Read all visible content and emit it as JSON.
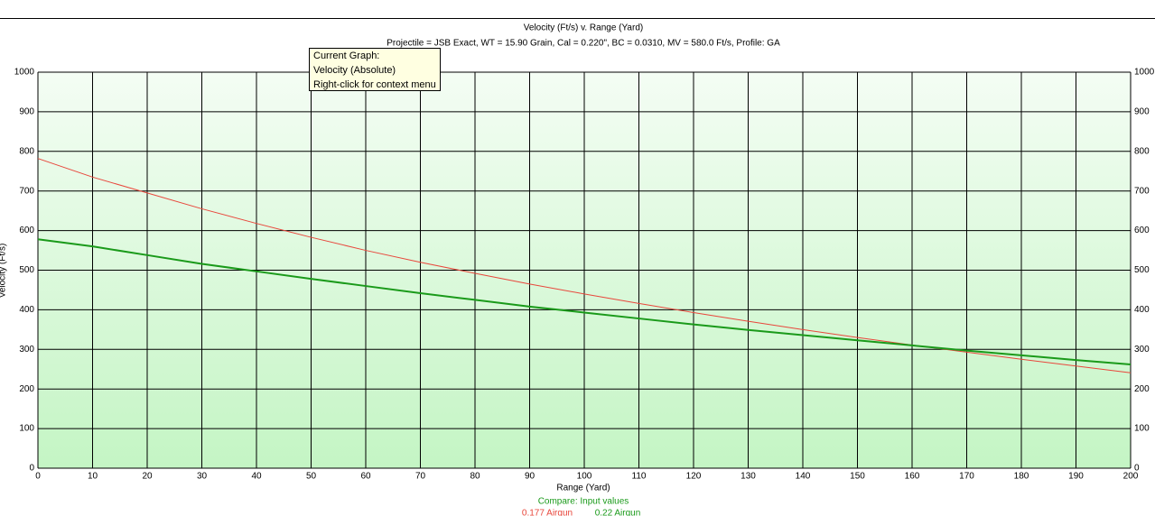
{
  "chart_data": {
    "type": "line",
    "title": "Velocity (Ft/s) v. Range (Yard)",
    "subtitle": "Projectile = JSB Exact, WT = 15.90 Grain, Cal = 0.220\", BC = 0.0310, MV = 580.0 Ft/s, Profile: GA",
    "x_label": "Range (Yard)",
    "y_label": "Velocity (Ft/s)",
    "legend_title": "Compare: Input values",
    "x": [
      0,
      10,
      20,
      30,
      40,
      50,
      60,
      70,
      80,
      90,
      100,
      110,
      120,
      130,
      140,
      150,
      160,
      170,
      180,
      190,
      200
    ],
    "series": [
      {
        "name": "0.177 Airgun",
        "color": "#e8473c",
        "width": 1,
        "values": [
          782,
          735,
          695,
          655,
          618,
          583,
          550,
          520,
          492,
          465,
          440,
          416,
          393,
          371,
          350,
          330,
          311,
          293,
          275,
          258,
          241
        ]
      },
      {
        "name": "0.22 Airgun",
        "color": "#1a9a1a",
        "width": 2,
        "values": [
          578,
          560,
          538,
          516,
          497,
          478,
          460,
          442,
          425,
          408,
          393,
          378,
          363,
          349,
          336,
          323,
          310,
          297,
          285,
          273,
          262
        ]
      }
    ],
    "xlim": [
      0,
      200
    ],
    "xticks": [
      0,
      10,
      20,
      30,
      40,
      50,
      60,
      70,
      80,
      90,
      100,
      110,
      120,
      130,
      140,
      150,
      160,
      170,
      180,
      190,
      200
    ],
    "ylim": [
      0,
      1000
    ],
    "yticks": [
      0,
      100,
      200,
      300,
      400,
      500,
      600,
      700,
      800,
      900,
      1000
    ],
    "grid": true
  },
  "tooltip": {
    "lines": [
      "Current Graph:",
      "Velocity (Absolute)",
      "Right-click for context menu"
    ]
  }
}
